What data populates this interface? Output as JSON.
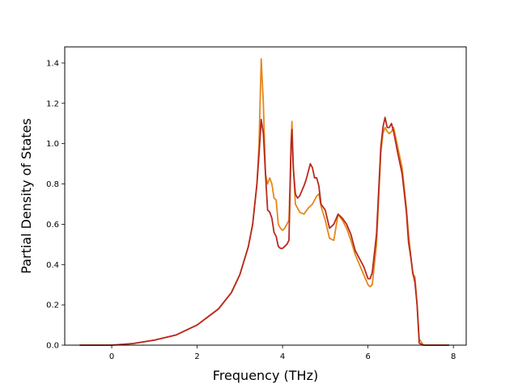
{
  "chart_data": {
    "type": "line",
    "title": "",
    "xlabel": "Frequency (THz)",
    "ylabel": "Partial Density of States",
    "xlim": [
      -1.1,
      8.3
    ],
    "ylim": [
      0.0,
      1.48
    ],
    "xticks": [
      0,
      2,
      4,
      6,
      8
    ],
    "yticks": [
      0.0,
      0.2,
      0.4,
      0.6,
      0.8,
      1.0,
      1.2,
      1.4
    ],
    "xtick_labels": [
      "0",
      "2",
      "4",
      "6",
      "8"
    ],
    "ytick_labels": [
      "0.0",
      "0.2",
      "0.4",
      "0.6",
      "0.8",
      "1.0",
      "1.2",
      "1.4"
    ],
    "grid": false,
    "legend": false,
    "series": [
      {
        "color": "#e6861c",
        "x": [
          -0.75,
          0.0,
          0.5,
          1.0,
          1.5,
          2.0,
          2.5,
          2.8,
          3.0,
          3.2,
          3.3,
          3.4,
          3.45,
          3.5,
          3.55,
          3.6,
          3.65,
          3.7,
          3.75,
          3.8,
          3.85,
          3.9,
          3.95,
          4.0,
          4.05,
          4.1,
          4.15,
          4.2,
          4.22,
          4.25,
          4.3,
          4.4,
          4.5,
          4.6,
          4.7,
          4.8,
          4.85,
          4.9,
          5.0,
          5.1,
          5.2,
          5.3,
          5.4,
          5.5,
          5.6,
          5.7,
          5.8,
          5.9,
          6.0,
          6.05,
          6.1,
          6.2,
          6.3,
          6.35,
          6.4,
          6.45,
          6.5,
          6.55,
          6.6,
          6.7,
          6.8,
          6.9,
          6.95,
          7.0,
          7.05,
          7.1,
          7.15,
          7.2,
          7.3,
          7.5,
          7.9
        ],
        "y": [
          0.0,
          0.0,
          0.008,
          0.025,
          0.05,
          0.1,
          0.18,
          0.26,
          0.35,
          0.49,
          0.6,
          0.8,
          1.0,
          1.42,
          1.2,
          0.85,
          0.8,
          0.83,
          0.8,
          0.73,
          0.72,
          0.6,
          0.58,
          0.57,
          0.58,
          0.6,
          0.62,
          1.0,
          1.11,
          0.9,
          0.7,
          0.66,
          0.65,
          0.68,
          0.7,
          0.74,
          0.75,
          0.69,
          0.62,
          0.53,
          0.52,
          0.65,
          0.62,
          0.58,
          0.52,
          0.45,
          0.4,
          0.35,
          0.3,
          0.29,
          0.3,
          0.5,
          0.95,
          1.05,
          1.08,
          1.06,
          1.05,
          1.06,
          1.08,
          0.98,
          0.88,
          0.68,
          0.55,
          0.45,
          0.35,
          0.34,
          0.2,
          0.03,
          0.0,
          0.0,
          0.0
        ]
      },
      {
        "color": "#b82a1f",
        "x": [
          -0.75,
          0.0,
          0.5,
          1.0,
          1.5,
          2.0,
          2.5,
          2.8,
          3.0,
          3.2,
          3.3,
          3.4,
          3.45,
          3.5,
          3.55,
          3.6,
          3.65,
          3.7,
          3.75,
          3.8,
          3.85,
          3.9,
          3.95,
          4.0,
          4.05,
          4.1,
          4.15,
          4.2,
          4.22,
          4.25,
          4.3,
          4.35,
          4.4,
          4.5,
          4.55,
          4.6,
          4.65,
          4.7,
          4.75,
          4.8,
          4.85,
          4.9,
          5.0,
          5.1,
          5.2,
          5.3,
          5.4,
          5.5,
          5.6,
          5.7,
          5.8,
          5.9,
          6.0,
          6.05,
          6.1,
          6.2,
          6.3,
          6.35,
          6.4,
          6.45,
          6.5,
          6.55,
          6.6,
          6.7,
          6.8,
          6.9,
          6.95,
          7.0,
          7.05,
          7.1,
          7.15,
          7.2,
          7.3,
          7.5,
          7.9
        ],
        "y": [
          0.0,
          0.0,
          0.008,
          0.025,
          0.05,
          0.1,
          0.18,
          0.26,
          0.35,
          0.49,
          0.6,
          0.8,
          0.95,
          1.12,
          1.05,
          0.85,
          0.67,
          0.66,
          0.63,
          0.56,
          0.54,
          0.49,
          0.48,
          0.48,
          0.49,
          0.5,
          0.52,
          1.0,
          1.07,
          0.88,
          0.75,
          0.73,
          0.74,
          0.79,
          0.82,
          0.86,
          0.9,
          0.88,
          0.83,
          0.83,
          0.79,
          0.7,
          0.67,
          0.58,
          0.6,
          0.65,
          0.63,
          0.6,
          0.55,
          0.47,
          0.43,
          0.39,
          0.33,
          0.33,
          0.36,
          0.55,
          0.98,
          1.08,
          1.13,
          1.08,
          1.08,
          1.1,
          1.06,
          0.95,
          0.85,
          0.66,
          0.51,
          0.44,
          0.36,
          0.31,
          0.2,
          0.01,
          0.0,
          0.0,
          0.0
        ]
      }
    ]
  }
}
